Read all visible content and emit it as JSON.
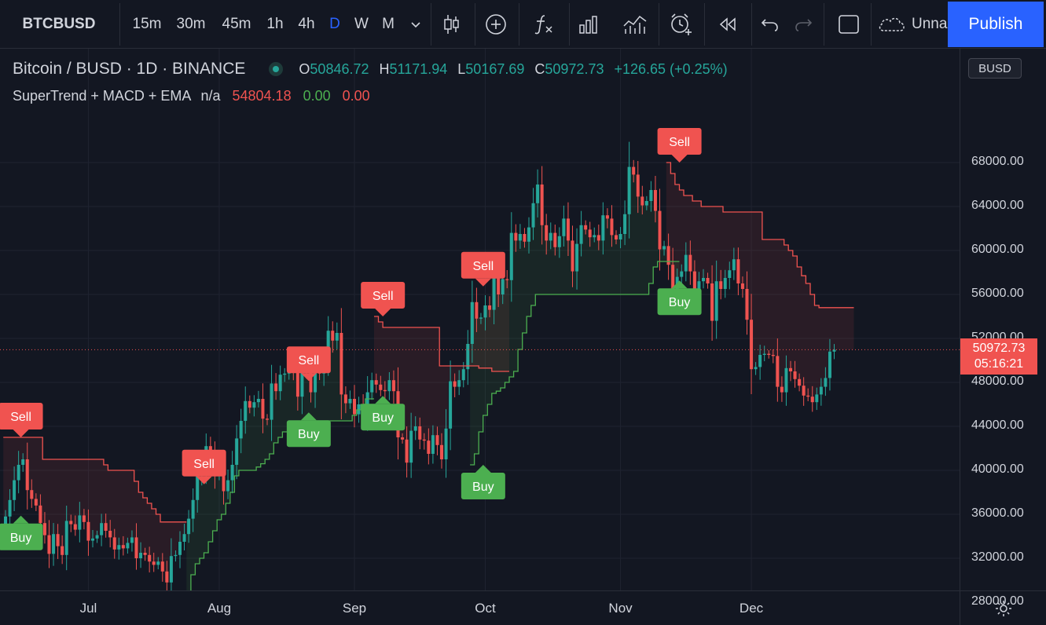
{
  "toolbar": {
    "symbol": "BTCBUSD",
    "timeframes": [
      "15m",
      "30m",
      "45m",
      "1h",
      "4h",
      "D",
      "W",
      "M"
    ],
    "active_timeframe": "D",
    "layout_name": "Unna",
    "publish_label": "Publish"
  },
  "legend": {
    "title": "Bitcoin / BUSD · 1D · BINANCE",
    "o_label": "O",
    "o_value": "50846.72",
    "h_label": "H",
    "h_value": "51171.94",
    "l_label": "L",
    "l_value": "50167.69",
    "c_label": "C",
    "c_value": "50972.73",
    "change": "+126.65 (+0.25%)",
    "indicator_name": "SuperTrend + MACD + EMA",
    "indicator_na": "n/a",
    "indicator_v1": "54804.18",
    "indicator_v2": "0.00",
    "indicator_v3": "0.00"
  },
  "price_axis": {
    "currency": "BUSD",
    "labels": [
      "68000.00",
      "64000.00",
      "60000.00",
      "56000.00",
      "52000.00",
      "48000.00",
      "44000.00",
      "40000.00",
      "36000.00",
      "32000.00",
      "28000.00"
    ],
    "last_price": "50972.73",
    "countdown": "05:16:21"
  },
  "time_axis": {
    "labels": [
      "Jul",
      "Aug",
      "Sep",
      "Oct",
      "Nov",
      "Dec"
    ]
  },
  "colors": {
    "background": "#131722",
    "up": "#26a69a",
    "down": "#ef5350",
    "buy": "#4caf50",
    "sell": "#f05350",
    "accent": "#2962ff"
  },
  "chart_data": {
    "type": "candlestick",
    "symbol": "BTCBUSD",
    "interval": "1D",
    "ylim": [
      25000,
      72000
    ],
    "start_date": "2021-06-12",
    "close": [
      35800,
      37300,
      39100,
      40500,
      41000,
      38200,
      37400,
      36800,
      35200,
      34100,
      32400,
      34200,
      33100,
      32300,
      35400,
      35100,
      34600,
      35900,
      35300,
      33600,
      33800,
      34100,
      35200,
      34500,
      33900,
      32800,
      33200,
      32900,
      33400,
      33900,
      32000,
      32500,
      32300,
      31700,
      31400,
      31700,
      30800,
      29800,
      32200,
      32300,
      33500,
      34200,
      35600,
      37300,
      39500,
      40000,
      42200,
      41300,
      39500,
      39800,
      38100,
      39100,
      40500,
      42900,
      44500,
      46300,
      45700,
      46200,
      46500,
      44700,
      44600,
      47900,
      47200,
      48700,
      48800,
      49300,
      49000,
      46700,
      49000,
      48900,
      47100,
      49400,
      48800,
      50000,
      52700,
      51800,
      52500,
      46900,
      46100,
      46500,
      45100,
      46000,
      44900,
      47100,
      48200,
      47800,
      47300,
      47200,
      48200,
      47200,
      43000,
      42800,
      40700,
      43600,
      44000,
      42800,
      42700,
      41500,
      43200,
      42300,
      41000,
      43800,
      48100,
      47600,
      48200,
      49200,
      51500,
      55300,
      53800,
      53900,
      55000,
      54600,
      57500,
      56000,
      57400,
      57300,
      61600,
      60900,
      61500,
      60800,
      62100,
      64300,
      66000,
      62300,
      60900,
      61600,
      60300,
      61300,
      62900,
      60900,
      58100,
      60600,
      62300,
      61900,
      61200,
      61400,
      60900,
      63200,
      62900,
      61400,
      61000,
      61500,
      63300,
      67600,
      66900,
      64900,
      64100,
      64500,
      65500,
      63600,
      60100,
      60400,
      58700,
      56300,
      57600,
      58100,
      59600,
      58100,
      56300,
      57200,
      57500,
      57000,
      53600,
      57200,
      56500,
      57500,
      58200,
      59200,
      57000,
      56500,
      53700,
      49200,
      49400,
      50500,
      50600,
      50500,
      50400,
      47600,
      47100,
      49300,
      49000,
      48300,
      47700,
      46800,
      46700,
      46200,
      46900,
      47600,
      48400,
      50800,
      50972
    ],
    "supertrend_segments": [
      {
        "trend": "down",
        "start": 0,
        "values": [
          43000,
          43000,
          43000,
          43000,
          43000,
          43000,
          43000,
          43000,
          43000,
          41000,
          41000,
          41000,
          41000,
          41000,
          41000,
          41000,
          41000,
          41000,
          41000,
          41000,
          41000,
          41000,
          41000,
          40500,
          40000,
          40000,
          40000,
          40000,
          40000,
          40000,
          39000,
          38000,
          37500,
          37000,
          36500,
          36000,
          35300,
          35300,
          35300,
          35300,
          35300,
          35300
        ]
      },
      {
        "trend": "up",
        "start": 42,
        "values": [
          29000,
          30500,
          31500,
          32000,
          32500,
          33500,
          34500,
          35500,
          36000,
          37000,
          38000,
          39500,
          40000,
          40000,
          40000,
          40000,
          40300,
          40600,
          41000,
          41500,
          42500,
          43000,
          43500,
          43500,
          43500,
          44000,
          44200,
          44500,
          44500,
          44500,
          44500,
          44500,
          44500,
          44500,
          44500,
          44500,
          44500,
          44500,
          45000,
          45500,
          46000,
          46500,
          46500
        ]
      },
      {
        "trend": "down",
        "start": 85,
        "values": [
          54000,
          53500,
          53000,
          53000,
          53000,
          53000,
          53000,
          53000,
          53000,
          53000,
          53000,
          53000,
          53000,
          53000,
          53000,
          49500,
          49500,
          49500,
          49500,
          49500,
          49500,
          49500,
          49500,
          49500,
          49300,
          49300,
          49300,
          49000,
          49000,
          49000,
          49000
        ]
      },
      {
        "trend": "up",
        "start": 107,
        "values": [
          40500,
          41500,
          43500,
          45000,
          46000,
          47000,
          47200,
          47500,
          48000,
          48500,
          49000,
          51000,
          52500,
          54000,
          55000,
          56000,
          56000,
          56000,
          56000,
          56000,
          56000,
          56000,
          56000,
          56000,
          56000,
          56000,
          56000,
          56000,
          56000,
          56000,
          56000,
          56000,
          56000,
          56000,
          56000,
          56000,
          56000,
          56000,
          56000,
          56000,
          56000,
          57000,
          58500,
          59000,
          59000,
          59000,
          59000,
          59000
        ]
      },
      {
        "trend": "down",
        "start": 152,
        "values": [
          68000,
          67000,
          66000,
          65500,
          65000,
          65000,
          64500,
          64500,
          64000,
          64000,
          64000,
          64000,
          64000,
          63500,
          63500,
          63500,
          63500,
          63500,
          63500,
          63500,
          63500,
          63500,
          61000,
          61000,
          61000,
          61000,
          61000,
          60500,
          60000,
          59500,
          58500,
          57700,
          57000,
          56000,
          55000,
          54800,
          54800,
          54800,
          54800,
          54800,
          54800,
          54800,
          54800
        ]
      }
    ],
    "signals": [
      {
        "type": "Sell",
        "index": 1
      },
      {
        "type": "Buy",
        "index": 1
      },
      {
        "type": "Buy",
        "index": 43
      },
      {
        "type": "Sell",
        "index": 43
      },
      {
        "type": "Buy",
        "index": 67
      },
      {
        "type": "Sell",
        "index": 67
      },
      {
        "type": "Buy",
        "index": 84
      },
      {
        "type": "Sell",
        "index": 84
      },
      {
        "type": "Buy",
        "index": 107
      },
      {
        "type": "Sell",
        "index": 107
      },
      {
        "type": "Buy",
        "index": 152
      },
      {
        "type": "Sell",
        "index": 152
      }
    ],
    "xlabel": "",
    "ylabel": ""
  }
}
